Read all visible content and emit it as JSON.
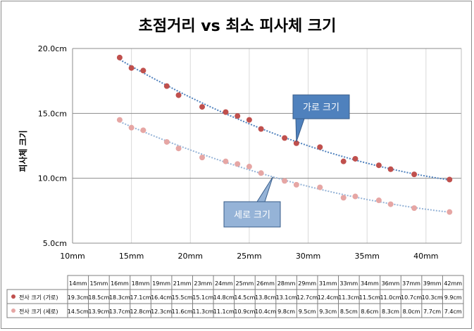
{
  "chart_data": {
    "type": "scatter",
    "title": "초점거리 vs 최소 피사체 크기",
    "ylabel": "피사체 크기",
    "xlabel": "",
    "x_ticks": [
      "10mm",
      "15mm",
      "20mm",
      "25mm",
      "30mm",
      "35mm",
      "40mm"
    ],
    "x_tick_values": [
      10,
      15,
      20,
      25,
      30,
      35,
      40
    ],
    "y_ticks": [
      "5.0cm",
      "10.0cm",
      "15.0cm",
      "20.0cm"
    ],
    "y_tick_values": [
      5,
      10,
      15,
      20
    ],
    "xlim": [
      10,
      43
    ],
    "ylim": [
      5,
      20
    ],
    "grid": true,
    "trendline": "dotted",
    "x": [
      14,
      15,
      16,
      18,
      19,
      21,
      23,
      24,
      25,
      26,
      28,
      29,
      31,
      33,
      34,
      36,
      37,
      39,
      42
    ],
    "series": [
      {
        "name": "가로",
        "table_label": "전사 크기 (가로)",
        "color": "#c0504d",
        "trend_color": "#4f81bd",
        "values": [
          19.3,
          18.5,
          18.3,
          17.1,
          16.4,
          15.5,
          15.1,
          14.8,
          14.5,
          13.8,
          13.1,
          12.7,
          12.4,
          11.3,
          11.5,
          11.0,
          10.7,
          10.3,
          9.9
        ]
      },
      {
        "name": "세로",
        "table_label": "전사 크기 (세로)",
        "color": "#e6a6a4",
        "trend_color": "#95b3d7",
        "values": [
          14.5,
          13.9,
          13.7,
          12.8,
          12.3,
          11.6,
          11.3,
          11.1,
          10.9,
          10.4,
          9.8,
          9.5,
          9.3,
          8.5,
          8.6,
          8.3,
          8.0,
          7.7,
          7.4
        ]
      }
    ],
    "table_headers": [
      "14mm",
      "15mm",
      "16mm",
      "18mm",
      "19mm",
      "21mm",
      "23mm",
      "24mm",
      "25mm",
      "26mm",
      "28mm",
      "29mm",
      "31mm",
      "33mm",
      "34mm",
      "36mm",
      "37mm",
      "39mm",
      "42mm"
    ],
    "table_rows": [
      [
        "19.3cm",
        "18.5cm",
        "18.3cm",
        "17.1cm",
        "16.4cm",
        "15.5cm",
        "15.1cm",
        "14.8cm",
        "14.5cm",
        "13.8cm",
        "13.1cm",
        "12.7cm",
        "12.4cm",
        "11.3cm",
        "11.5cm",
        "11.0cm",
        "10.7cm",
        "10.3cm",
        "9.9cm"
      ],
      [
        "14.5cm",
        "13.9cm",
        "13.7cm",
        "12.8cm",
        "12.3cm",
        "11.6cm",
        "11.3cm",
        "11.1cm",
        "10.9cm",
        "10.4cm",
        "9.8cm",
        "9.5cm",
        "9.3cm",
        "8.5cm",
        "8.6cm",
        "8.3cm",
        "8.0cm",
        "7.7cm",
        "7.4cm"
      ]
    ],
    "callouts": [
      {
        "text": "가로 크기",
        "series": "가로",
        "fill": "#4f81bd",
        "text_color": "#ffffff"
      },
      {
        "text": "세로 크기",
        "series": "세로",
        "fill": "#95b3d7",
        "text_color": "#ffffff"
      }
    ]
  }
}
